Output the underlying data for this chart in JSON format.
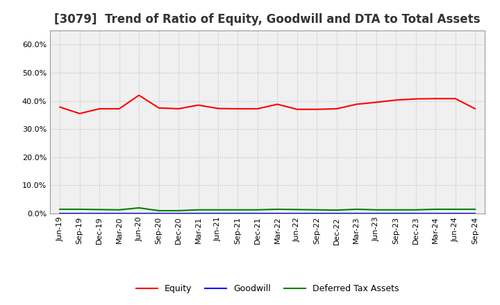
{
  "title": "[3079]  Trend of Ratio of Equity, Goodwill and DTA to Total Assets",
  "x_labels": [
    "Jun-19",
    "Sep-19",
    "Dec-19",
    "Mar-20",
    "Jun-20",
    "Sep-20",
    "Dec-20",
    "Mar-21",
    "Jun-21",
    "Sep-21",
    "Dec-21",
    "Mar-22",
    "Jun-22",
    "Sep-22",
    "Dec-22",
    "Mar-23",
    "Jun-23",
    "Sep-23",
    "Dec-23",
    "Mar-24",
    "Jun-24",
    "Sep-24"
  ],
  "equity": [
    0.378,
    0.355,
    0.372,
    0.372,
    0.42,
    0.375,
    0.372,
    0.385,
    0.373,
    0.372,
    0.372,
    0.388,
    0.37,
    0.37,
    0.372,
    0.388,
    0.395,
    0.403,
    0.407,
    0.408,
    0.408,
    0.372
  ],
  "goodwill": [
    0.0,
    0.0,
    0.0,
    0.0,
    0.0,
    0.0,
    0.0,
    0.0,
    0.0,
    0.0,
    0.0,
    0.0,
    0.0,
    0.0,
    0.0,
    0.0,
    0.0,
    0.0,
    0.0,
    0.0,
    0.0,
    0.0
  ],
  "dta": [
    0.015,
    0.015,
    0.014,
    0.013,
    0.02,
    0.01,
    0.01,
    0.013,
    0.013,
    0.013,
    0.013,
    0.015,
    0.014,
    0.013,
    0.012,
    0.015,
    0.013,
    0.013,
    0.013,
    0.015,
    0.015,
    0.015
  ],
  "equity_color": "#ff0000",
  "goodwill_color": "#0000ff",
  "dta_color": "#008000",
  "ylim": [
    0.0,
    0.65
  ],
  "yticks": [
    0.0,
    0.1,
    0.2,
    0.3,
    0.4,
    0.5,
    0.6
  ],
  "bg_color": "#ffffff",
  "plot_bg_color": "#f0f0f0",
  "grid_color": "#bbbbbb",
  "title_fontsize": 12,
  "tick_fontsize": 8,
  "legend_labels": [
    "Equity",
    "Goodwill",
    "Deferred Tax Assets"
  ]
}
